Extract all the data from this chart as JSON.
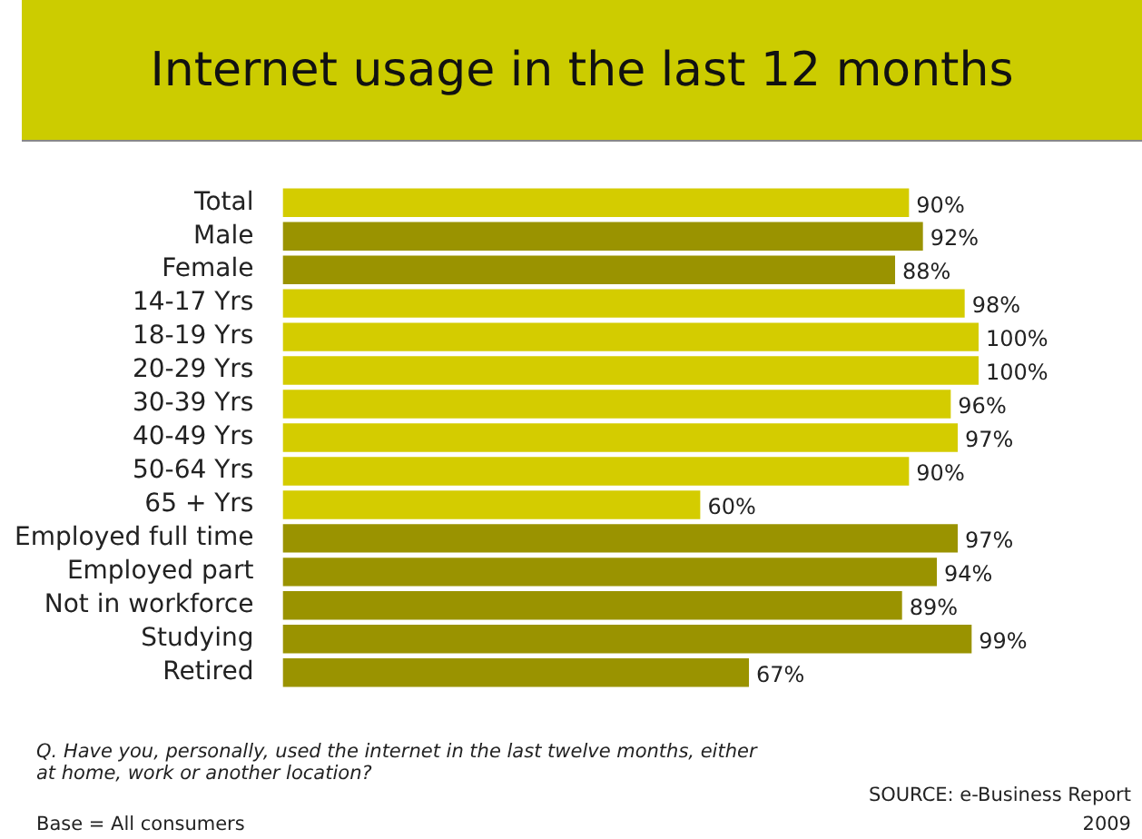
{
  "chart_data": {
    "type": "bar",
    "orientation": "horizontal",
    "title": "Internet usage in the last 12 months",
    "categories": [
      "Total",
      "Male",
      "Female",
      "14-17 Yrs",
      "18-19 Yrs",
      "20-29 Yrs",
      "30-39 Yrs",
      "40-49 Yrs",
      "50-64 Yrs",
      "65 + Yrs",
      "Employed full time",
      "Employed part",
      "Not in workforce",
      "Studying",
      "Retired"
    ],
    "values": [
      90,
      92,
      88,
      98,
      100,
      100,
      96,
      97,
      90,
      60,
      97,
      94,
      89,
      99,
      67
    ],
    "colors": [
      "#d4cc00",
      "#9a9300",
      "#9a9300",
      "#d4cc00",
      "#d4cc00",
      "#d4cc00",
      "#d4cc00",
      "#d4cc00",
      "#d4cc00",
      "#d4cc00",
      "#9a9300",
      "#9a9300",
      "#9a9300",
      "#9a9300",
      "#9a9300"
    ],
    "value_labels": [
      "90%",
      "92%",
      "88%",
      "98%",
      "100%",
      "100%",
      "96%",
      "97%",
      "90%",
      "60%",
      "97%",
      "94%",
      "89%",
      "99%",
      "67%"
    ],
    "xlim": [
      0,
      100
    ],
    "tick_labels": "y",
    "legend": false,
    "annotations": [
      "Q. Have you, personally, used the internet in the last twelve months, either at home, work or another location?",
      "Base = All consumers",
      "SOURCE: e-Business Report",
      "2009"
    ]
  }
}
